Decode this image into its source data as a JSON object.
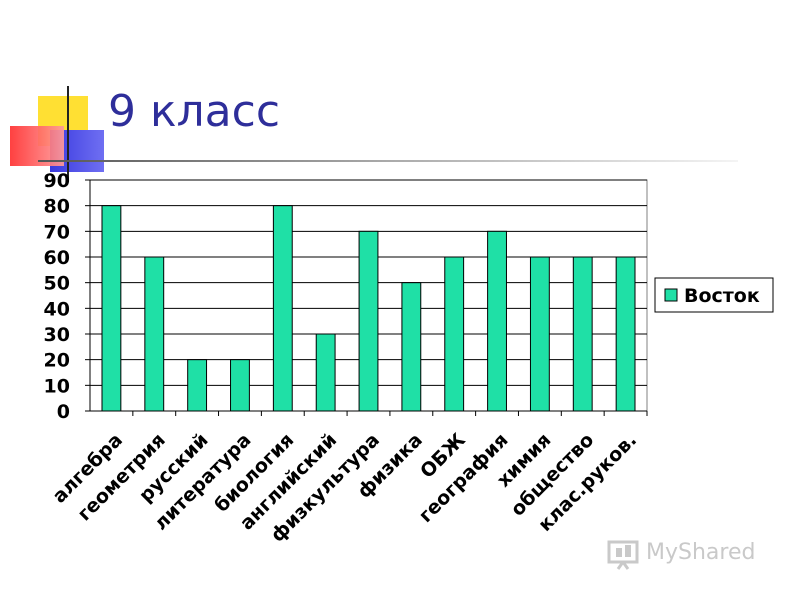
{
  "slide": {
    "title": "9 класс"
  },
  "watermark": {
    "text": "MyShared"
  },
  "colors": {
    "bar": "#1fe0a6",
    "title": "#2e2e9a",
    "deco_yellow": "#ffe033",
    "deco_red": "#ff4d4d",
    "deco_blue": "#3a3adf"
  },
  "chart_data": {
    "type": "bar",
    "title": "",
    "xlabel": "",
    "ylabel": "",
    "ylim": [
      0,
      90
    ],
    "yticks": [
      0,
      10,
      20,
      30,
      40,
      50,
      60,
      70,
      80,
      90
    ],
    "grid": true,
    "legend_position": "right",
    "categories": [
      "алгебра",
      "геометрия",
      "русский",
      "литература",
      "биология",
      "английский",
      "физкультура",
      "физика",
      "ОБЖ",
      "география",
      "химия",
      "общество",
      "клас.руков."
    ],
    "series": [
      {
        "name": "Восток",
        "color": "#1fe0a6",
        "values": [
          80,
          60,
          20,
          20,
          80,
          30,
          70,
          50,
          60,
          70,
          60,
          60,
          60
        ]
      }
    ]
  }
}
